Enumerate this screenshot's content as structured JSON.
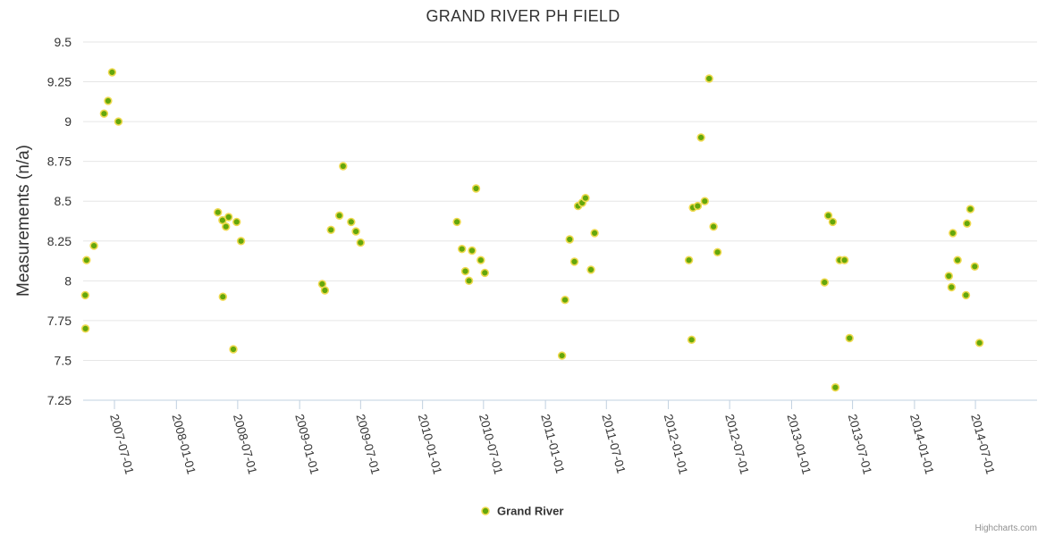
{
  "chart_data": {
    "type": "scatter",
    "title": "GRAND RIVER PH FIELD",
    "ylabel": "Measurements (n/a)",
    "xlabel": "",
    "ylim": [
      7.25,
      9.5
    ],
    "y_ticks": [
      "7.25",
      "7.5",
      "7.75",
      "8",
      "8.25",
      "8.5",
      "8.75",
      "9",
      "9.25",
      "9.5"
    ],
    "xlim": [
      "2007-03-30",
      "2014-12-31"
    ],
    "x_ticks": [
      "2007-07-01",
      "2008-01-01",
      "2008-07-01",
      "2009-01-01",
      "2009-07-01",
      "2010-01-01",
      "2010-07-01",
      "2011-01-01",
      "2011-07-01",
      "2012-01-01",
      "2012-07-01",
      "2013-01-01",
      "2013-07-01",
      "2014-01-01",
      "2014-07-01"
    ],
    "grid": true,
    "legend": "bottom-center",
    "colors": {
      "marker_fill": "#64a70b",
      "marker_stroke": "#efd94f"
    },
    "series": [
      {
        "name": "Grand River",
        "points": [
          [
            "2007-04-05",
            7.91
          ],
          [
            "2007-04-06",
            7.7
          ],
          [
            "2007-04-09",
            8.13
          ],
          [
            "2007-05-01",
            8.22
          ],
          [
            "2007-05-31",
            9.05
          ],
          [
            "2007-06-12",
            9.13
          ],
          [
            "2007-06-24",
            9.31
          ],
          [
            "2007-07-13",
            9.0
          ],
          [
            "2008-05-03",
            8.43
          ],
          [
            "2008-05-17",
            8.38
          ],
          [
            "2008-05-18",
            7.9
          ],
          [
            "2008-05-27",
            8.34
          ],
          [
            "2008-06-04",
            8.4
          ],
          [
            "2008-06-18",
            7.57
          ],
          [
            "2008-06-28",
            8.37
          ],
          [
            "2008-07-11",
            8.25
          ],
          [
            "2009-03-09",
            7.98
          ],
          [
            "2009-03-17",
            7.94
          ],
          [
            "2009-04-04",
            8.32
          ],
          [
            "2009-04-29",
            8.41
          ],
          [
            "2009-05-10",
            8.72
          ],
          [
            "2009-06-03",
            8.37
          ],
          [
            "2009-06-17",
            8.31
          ],
          [
            "2009-07-01",
            8.24
          ],
          [
            "2010-04-13",
            8.37
          ],
          [
            "2010-04-28",
            8.2
          ],
          [
            "2010-05-08",
            8.06
          ],
          [
            "2010-05-19",
            8.0
          ],
          [
            "2010-05-28",
            8.19
          ],
          [
            "2010-06-09",
            8.58
          ],
          [
            "2010-06-23",
            8.13
          ],
          [
            "2010-07-05",
            8.05
          ],
          [
            "2011-02-19",
            7.53
          ],
          [
            "2011-02-28",
            7.88
          ],
          [
            "2011-03-14",
            8.26
          ],
          [
            "2011-03-28",
            8.12
          ],
          [
            "2011-04-08",
            8.47
          ],
          [
            "2011-04-20",
            8.49
          ],
          [
            "2011-04-30",
            8.52
          ],
          [
            "2011-05-16",
            8.07
          ],
          [
            "2011-05-27",
            8.3
          ],
          [
            "2012-03-02",
            8.13
          ],
          [
            "2012-03-10",
            7.63
          ],
          [
            "2012-03-14",
            8.46
          ],
          [
            "2012-03-28",
            8.47
          ],
          [
            "2012-04-07",
            8.9
          ],
          [
            "2012-04-18",
            8.5
          ],
          [
            "2012-05-01",
            9.27
          ],
          [
            "2012-05-14",
            8.34
          ],
          [
            "2012-05-26",
            8.18
          ],
          [
            "2013-04-09",
            7.99
          ],
          [
            "2013-04-20",
            8.41
          ],
          [
            "2013-05-03",
            8.37
          ],
          [
            "2013-05-11",
            7.33
          ],
          [
            "2013-05-24",
            8.13
          ],
          [
            "2013-06-07",
            8.13
          ],
          [
            "2013-06-22",
            7.64
          ],
          [
            "2014-04-13",
            8.03
          ],
          [
            "2014-04-21",
            7.96
          ],
          [
            "2014-04-25",
            8.3
          ],
          [
            "2014-05-09",
            8.13
          ],
          [
            "2014-06-03",
            7.91
          ],
          [
            "2014-06-06",
            8.36
          ],
          [
            "2014-06-16",
            8.45
          ],
          [
            "2014-06-29",
            8.09
          ],
          [
            "2014-07-13",
            7.61
          ]
        ]
      }
    ]
  },
  "credits": "Highcharts.com"
}
